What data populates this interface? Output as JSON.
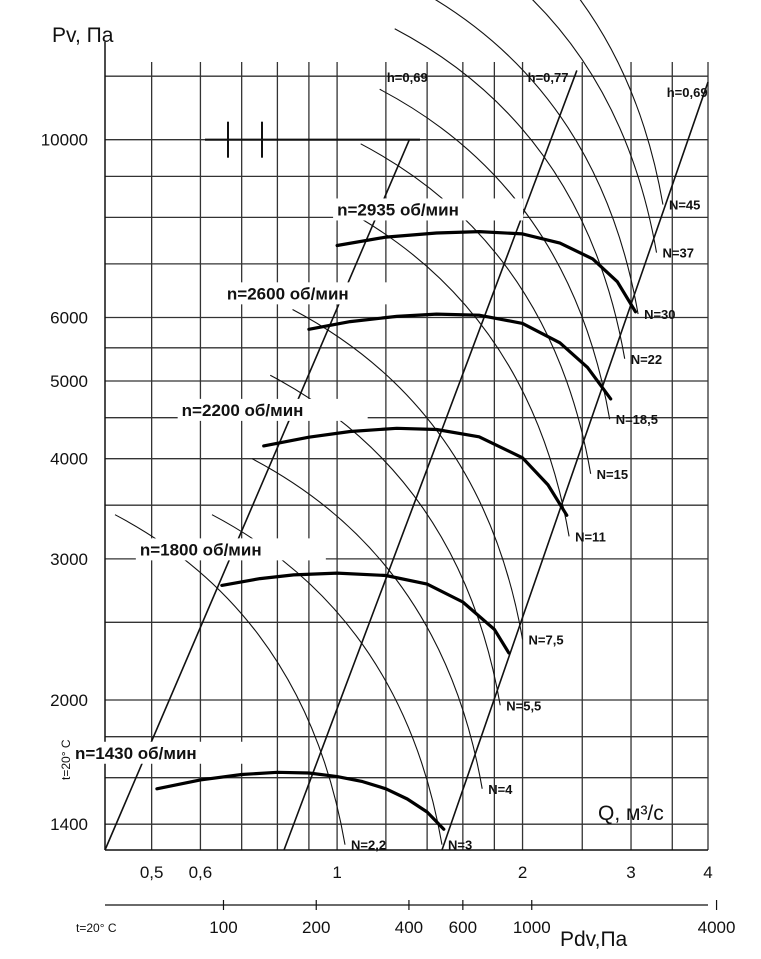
{
  "chart_data": {
    "type": "line",
    "title": "",
    "ylabel": "Pv, Па",
    "xlabel": "Q, м³/с",
    "x_scale": "log",
    "y_scale": "log",
    "xlim": [
      0.42,
      4.0
    ],
    "ylim": [
      1300,
      12500
    ],
    "x_ticks": [
      {
        "v": 0.5,
        "label": "0,5"
      },
      {
        "v": 0.6,
        "label": "0,6"
      },
      {
        "v": 1,
        "label": "1"
      },
      {
        "v": 2,
        "label": "2"
      },
      {
        "v": 3,
        "label": "3"
      },
      {
        "v": 4,
        "label": "4"
      }
    ],
    "y_ticks": [
      {
        "v": 10000,
        "label": "10000"
      },
      {
        "v": 6000,
        "label": "6000"
      },
      {
        "v": 5000,
        "label": "5000"
      },
      {
        "v": 4000,
        "label": "4000"
      },
      {
        "v": 3000,
        "label": "3000"
      },
      {
        "v": 2000,
        "label": "2000"
      },
      {
        "v": 1400,
        "label": "1400"
      }
    ],
    "grid_x": [
      0.5,
      0.6,
      0.7,
      0.8,
      0.9,
      1,
      1.2,
      1.4,
      1.6,
      1.8,
      2,
      2.5,
      3,
      3.5,
      4
    ],
    "grid_y": [
      1400,
      1600,
      1800,
      2000,
      2500,
      3000,
      3500,
      4000,
      4500,
      5000,
      5500,
      6000,
      7000,
      8000,
      9000,
      10000,
      12000
    ],
    "dynamic_pressure_axis": {
      "label": "Pdv,Па",
      "temp_label": "t=20° C",
      "ticks": [
        {
          "q": 0.654,
          "label": "100"
        },
        {
          "q": 0.925,
          "label": "200"
        },
        {
          "q": 1.308,
          "label": "400"
        },
        {
          "q": 1.6,
          "label": "600"
        },
        {
          "q": 2.07,
          "label": "1000"
        },
        {
          "q": 4.13,
          "label": "4000"
        }
      ]
    },
    "temp_side_label": "t=20° C",
    "series": [
      {
        "name": "n=1430 об/мин",
        "x": [
          0.51,
          0.6,
          0.7,
          0.8,
          0.9,
          1.0,
          1.1,
          1.2,
          1.3,
          1.4,
          1.49
        ],
        "y": [
          1550,
          1590,
          1615,
          1625,
          1622,
          1605,
          1582,
          1550,
          1505,
          1450,
          1380
        ]
      },
      {
        "name": "n=1800 об/мин",
        "x": [
          0.65,
          0.75,
          0.85,
          1.0,
          1.2,
          1.4,
          1.6,
          1.8,
          1.9
        ],
        "y": [
          2780,
          2835,
          2865,
          2880,
          2860,
          2790,
          2650,
          2450,
          2290
        ]
      },
      {
        "name": "n=2200 об/мин",
        "x": [
          0.76,
          0.9,
          1.05,
          1.25,
          1.45,
          1.7,
          2.0,
          2.2,
          2.36
        ],
        "y": [
          4150,
          4255,
          4325,
          4365,
          4350,
          4260,
          4010,
          3710,
          3400
        ]
      },
      {
        "name": "n=2600 об/мин",
        "x": [
          0.9,
          1.05,
          1.25,
          1.45,
          1.7,
          2.0,
          2.3,
          2.55,
          2.78
        ],
        "y": [
          5800,
          5930,
          6020,
          6060,
          6040,
          5900,
          5580,
          5200,
          4750
        ]
      },
      {
        "name": "n=2935 об/мин",
        "x": [
          1.0,
          1.2,
          1.45,
          1.7,
          2.0,
          2.3,
          2.6,
          2.85,
          3.05
        ],
        "y": [
          7380,
          7560,
          7650,
          7680,
          7630,
          7430,
          7100,
          6650,
          6100
        ]
      }
    ],
    "efficiency_lines": [
      {
        "label": "h=0,69",
        "x": [
          0.42,
          1.31
        ],
        "y": [
          1300,
          10000
        ],
        "label_pos": [
          1.3,
          11800
        ]
      },
      {
        "label": "h=0,77",
        "x": [
          0.82,
          2.45
        ],
        "y": [
          1300,
          12200
        ],
        "label_pos": [
          2.2,
          11800
        ]
      },
      {
        "label": "h=0,69",
        "x": [
          1.48,
          4.0
        ],
        "y": [
          1300,
          11800
        ],
        "label_pos": [
          3.7,
          11300
        ]
      }
    ],
    "power_labels": [
      {
        "label": "N=2,2",
        "q": 1.03,
        "p": 1320
      },
      {
        "label": "N=3",
        "q": 1.48,
        "p": 1320
      },
      {
        "label": "N=4",
        "q": 1.72,
        "p": 1550
      },
      {
        "label": "N=5,5",
        "q": 1.84,
        "p": 1970
      },
      {
        "label": "N=7,5",
        "q": 2.0,
        "p": 2380
      },
      {
        "label": "N=11",
        "q": 2.38,
        "p": 3200
      },
      {
        "label": "N=15",
        "q": 2.58,
        "p": 3830
      },
      {
        "label": "N=18,5",
        "q": 2.77,
        "p": 4480
      },
      {
        "label": "N=22",
        "q": 2.93,
        "p": 5330
      },
      {
        "label": "N=30",
        "q": 3.08,
        "p": 6060
      },
      {
        "label": "N=37",
        "q": 3.3,
        "p": 7230
      },
      {
        "label": "N=45",
        "q": 3.38,
        "p": 8300
      }
    ],
    "legend": "none"
  }
}
